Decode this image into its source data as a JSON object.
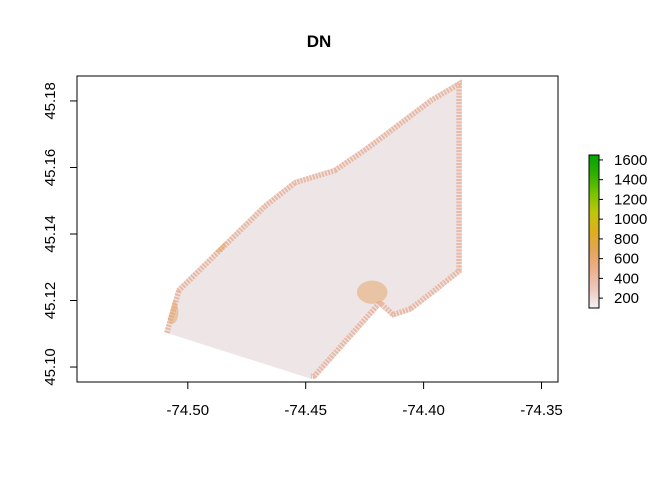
{
  "chart_data": {
    "type": "heatmap",
    "title": "DN",
    "xlabel": "",
    "ylabel": "",
    "xlim": [
      -74.547,
      -74.343
    ],
    "ylim": [
      45.0955,
      45.1875
    ],
    "x_ticks": [
      -74.5,
      -74.45,
      -74.4,
      -74.35
    ],
    "x_tick_labels": [
      "-74.50",
      "-74.45",
      "-74.40",
      "-74.35"
    ],
    "y_ticks": [
      45.1,
      45.12,
      45.14,
      45.16,
      45.18
    ],
    "y_tick_labels": [
      "45.10",
      "45.12",
      "45.14",
      "45.16",
      "45.18"
    ],
    "grid": false,
    "legend": {
      "placement": "right",
      "title": "",
      "min": 100,
      "max": 1650,
      "ticks": [
        200,
        400,
        600,
        800,
        1000,
        1200,
        1400,
        1600
      ],
      "tick_labels": [
        "200",
        "400",
        "600",
        "800",
        "1000",
        "1200",
        "1400",
        "1600"
      ],
      "colors": [
        "#F2F2F2",
        "#EEC7BE",
        "#EBB08E",
        "#E2A55A",
        "#DDAE1E",
        "#BFC60A",
        "#75C400",
        "#2FAE00",
        "#00A600"
      ]
    },
    "raster": {
      "footprint_color": "#EEE6E6",
      "edge_color": "#E8B49D",
      "hot_color": "#E3A76D",
      "footprint": [
        [
          -74.51,
          45.1105
        ],
        [
          -74.5048,
          45.1235
        ],
        [
          -74.468,
          45.149
        ],
        [
          -74.455,
          45.1562
        ],
        [
          -74.4382,
          45.1598
        ],
        [
          -74.4258,
          45.1658
        ],
        [
          -74.4155,
          45.1712
        ],
        [
          -74.3975,
          45.1808
        ],
        [
          -74.3838,
          45.1865
        ],
        [
          -74.3838,
          45.1285
        ],
        [
          -74.395,
          45.1222
        ],
        [
          -74.405,
          45.1168
        ],
        [
          -74.4132,
          45.1148
        ],
        [
          -74.4185,
          45.1182
        ],
        [
          -74.4458,
          45.0965
        ],
        [
          -74.4478,
          45.0965
        ]
      ]
    }
  }
}
